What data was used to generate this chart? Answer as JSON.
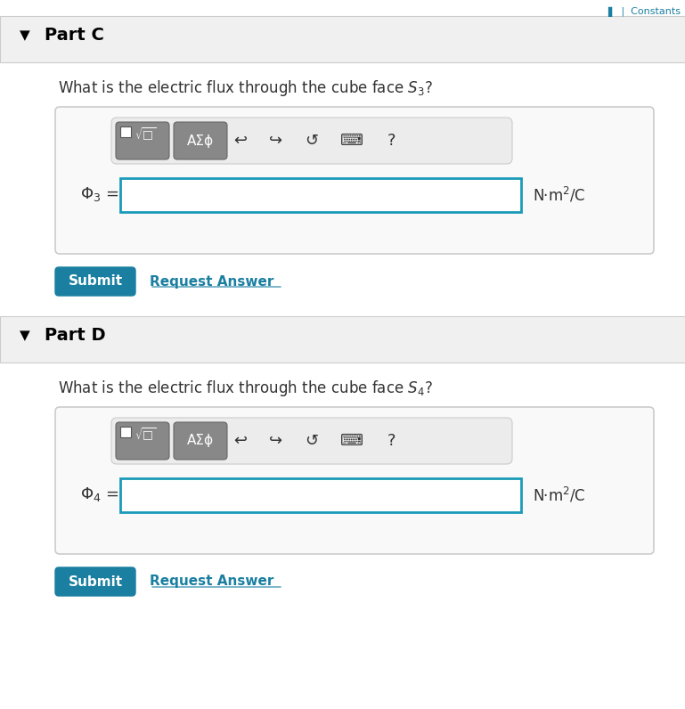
{
  "bg_color": "#ffffff",
  "header_bg": "#f0f0f0",
  "part_c_label": "Part C",
  "part_d_label": "Part D",
  "question_c": "What is the electric flux through the cube face $S_3$?",
  "question_d": "What is the electric flux through the cube face $S_4$?",
  "phi3_label": "$\\Phi_3$ =",
  "phi4_label": "$\\Phi_4$ =",
  "units": "N·m$^2$/C",
  "submit_label": "Submit",
  "request_label": "Request Answer",
  "submit_bg": "#1a7fa0",
  "submit_text_color": "#ffffff",
  "request_color": "#1a7fa0",
  "input_border_color": "#1a9ab8",
  "toolbar_bg": "#888888",
  "toolbar_text": "AΣϕ",
  "outer_box_bg": "#f5f5f5",
  "outer_box_border": "#cccccc",
  "arrow_color": "#000000",
  "header_separator": "#cccccc",
  "top_link_color": "#1a7fa0",
  "fig_width": 7.69,
  "fig_height": 7.96
}
